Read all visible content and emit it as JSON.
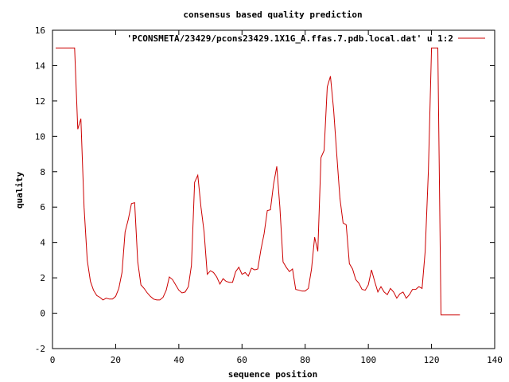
{
  "chart_data": {
    "type": "line",
    "title": "consensus based quality prediction",
    "xlabel": "sequence position",
    "ylabel": "quality",
    "xlim": [
      0,
      140
    ],
    "ylim": [
      -2,
      16
    ],
    "x_ticks": [
      0,
      20,
      40,
      60,
      80,
      100,
      120,
      140
    ],
    "y_ticks": [
      -2,
      0,
      2,
      4,
      6,
      8,
      10,
      12,
      14,
      16
    ],
    "x_tick_labels": [
      "0",
      "20",
      "40",
      "60",
      "80",
      "100",
      "120",
      "140"
    ],
    "y_tick_labels": [
      "-2",
      "0",
      "2",
      "4",
      "6",
      "8",
      "10",
      "12",
      "14",
      "16"
    ],
    "grid": false,
    "legend_position": "top-right",
    "series": [
      {
        "name": "'PCONSMETA/23429/pcons23429.1X1G_A.ffas.7.pdb.local.dat' u 1:2",
        "color": "#cc0000",
        "x": [
          1,
          2,
          3,
          4,
          5,
          6,
          7,
          8,
          9,
          10,
          11,
          12,
          13,
          14,
          15,
          16,
          17,
          18,
          19,
          20,
          21,
          22,
          23,
          24,
          25,
          26,
          27,
          28,
          29,
          30,
          31,
          32,
          33,
          34,
          35,
          36,
          37,
          38,
          39,
          40,
          41,
          42,
          43,
          44,
          45,
          46,
          47,
          48,
          49,
          50,
          51,
          52,
          53,
          54,
          55,
          56,
          57,
          58,
          59,
          60,
          61,
          62,
          63,
          64,
          65,
          66,
          67,
          68,
          69,
          70,
          71,
          72,
          73,
          74,
          75,
          76,
          77,
          78,
          79,
          80,
          81,
          82,
          83,
          84,
          85,
          86,
          87,
          88,
          89,
          90,
          91,
          92,
          93,
          94,
          95,
          96,
          97,
          98,
          99,
          100,
          101,
          102,
          103,
          104,
          105,
          106,
          107,
          108,
          109,
          110,
          111,
          112,
          113,
          114,
          115,
          116,
          117,
          118,
          119,
          120,
          121,
          122,
          123,
          124,
          125,
          126,
          127,
          128,
          129
        ],
        "y": [
          15,
          15,
          15,
          15,
          15,
          15,
          15,
          10.4,
          11,
          6,
          3,
          1.8,
          1.3,
          1,
          0.9,
          0.75,
          0.85,
          0.8,
          0.8,
          0.95,
          1.4,
          2.3,
          4.6,
          5.3,
          6.2,
          6.25,
          2.9,
          1.6,
          1.4,
          1.15,
          0.95,
          0.8,
          0.75,
          0.75,
          0.9,
          1.3,
          2.05,
          1.9,
          1.6,
          1.3,
          1.15,
          1.2,
          1.5,
          2.7,
          7.4,
          7.8,
          6,
          4.6,
          2.2,
          2.4,
          2.3,
          2.05,
          1.65,
          1.95,
          1.8,
          1.75,
          1.75,
          2.35,
          2.6,
          2.2,
          2.3,
          2.1,
          2.55,
          2.45,
          2.5,
          3.6,
          4.5,
          5.8,
          5.85,
          7.3,
          8.3,
          6,
          2.9,
          2.6,
          2.35,
          2.5,
          1.35,
          1.3,
          1.25,
          1.25,
          1.4,
          2.5,
          4.3,
          3.5,
          8.8,
          9.2,
          12.8,
          13.4,
          11.5,
          9,
          6.5,
          5.1,
          5,
          2.8,
          2.5,
          1.9,
          1.7,
          1.35,
          1.3,
          1.6,
          2.45,
          1.8,
          1.2,
          1.5,
          1.2,
          1.05,
          1.4,
          1.2,
          0.85,
          1.1,
          1.2,
          0.85,
          1.05,
          1.35,
          1.35,
          1.5,
          1.4,
          3.5,
          8,
          15,
          15,
          15,
          -0.1,
          -0.1,
          -0.1,
          -0.1,
          -0.1,
          -0.1,
          -0.1
        ]
      }
    ]
  }
}
